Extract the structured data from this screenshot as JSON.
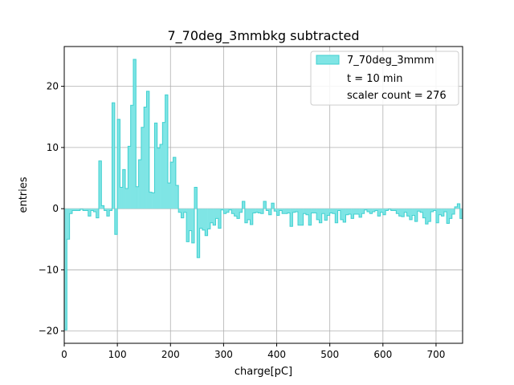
{
  "chart_data": {
    "type": "histogram",
    "title": "7_70deg_3mmbkg subtracted",
    "xlabel": "charge[pC]",
    "ylabel": "entries",
    "xlim": [
      0,
      750
    ],
    "ylim": [
      -22,
      26.5
    ],
    "xticks": [
      0,
      100,
      200,
      300,
      400,
      500,
      600,
      700
    ],
    "yticks": [
      -20,
      -10,
      0,
      10,
      20
    ],
    "grid": true,
    "bin_width": 5,
    "legend": {
      "placement": "top-right",
      "entries": [
        "7_70deg_3mmm",
        "t = 10 min",
        "scaler count = 276"
      ]
    },
    "series": [
      {
        "name": "7_70deg_3mmm",
        "color": "#7fe5e5",
        "edge_color": "#40d0d0",
        "values": [
          -19.8,
          -5.0,
          -0.8,
          -0.3,
          -0.3,
          -0.3,
          -0.1,
          -0.3,
          -0.3,
          -1.2,
          -0.3,
          -0.5,
          -1.5,
          7.8,
          0.5,
          -0.3,
          -1.2,
          -0.3,
          17.3,
          -4.2,
          14.6,
          3.5,
          6.4,
          3.3,
          10.2,
          16.9,
          24.4,
          3.6,
          8.0,
          13.3,
          16.6,
          19.2,
          2.7,
          2.6,
          14.0,
          9.9,
          10.5,
          14.1,
          18.6,
          4.2,
          7.6,
          8.4,
          3.8,
          -0.6,
          -1.5,
          -0.6,
          -5.4,
          -3.6,
          -5.6,
          3.5,
          -8.0,
          -3.2,
          -3.5,
          -4.4,
          -3.3,
          -2.3,
          -2.7,
          -1.6,
          -3.2,
          -0.2,
          -0.8,
          -0.6,
          -0.2,
          -0.8,
          -1.2,
          -1.6,
          -0.6,
          1.2,
          -2.3,
          -1.8,
          -2.6,
          -0.7,
          -0.6,
          -0.7,
          -0.8,
          1.2,
          -0.3,
          -1.0,
          0.9,
          -0.4,
          -1.1,
          -0.3,
          -0.8,
          -0.8,
          -0.7,
          -2.9,
          -0.6,
          -0.5,
          -2.7,
          -2.7,
          -0.8,
          -1.0,
          -2.7,
          -0.7,
          -0.7,
          -1.8,
          -2.3,
          -0.8,
          -1.9,
          -1.1,
          -0.7,
          -0.8,
          -2.3,
          -0.3,
          -1.8,
          -2.2,
          -1.0,
          -0.9,
          -1.6,
          -0.9,
          -0.9,
          -1.4,
          -0.8,
          -0.2,
          -0.5,
          -0.8,
          -0.5,
          -0.3,
          -1.2,
          -0.6,
          -1.0,
          -0.3,
          -0.1,
          -0.3,
          -0.3,
          -0.8,
          -1.2,
          -1.3,
          -0.6,
          -1.2,
          -1.8,
          -1.1,
          -2.1,
          -0.4,
          -0.6,
          -1.5,
          -2.5,
          -2.1,
          -0.5,
          -0.3,
          -2.3,
          -1.0,
          -1.2,
          -0.5,
          -2.4,
          -1.6,
          -0.9,
          0.3,
          0.8,
          -1.6
        ]
      }
    ]
  }
}
